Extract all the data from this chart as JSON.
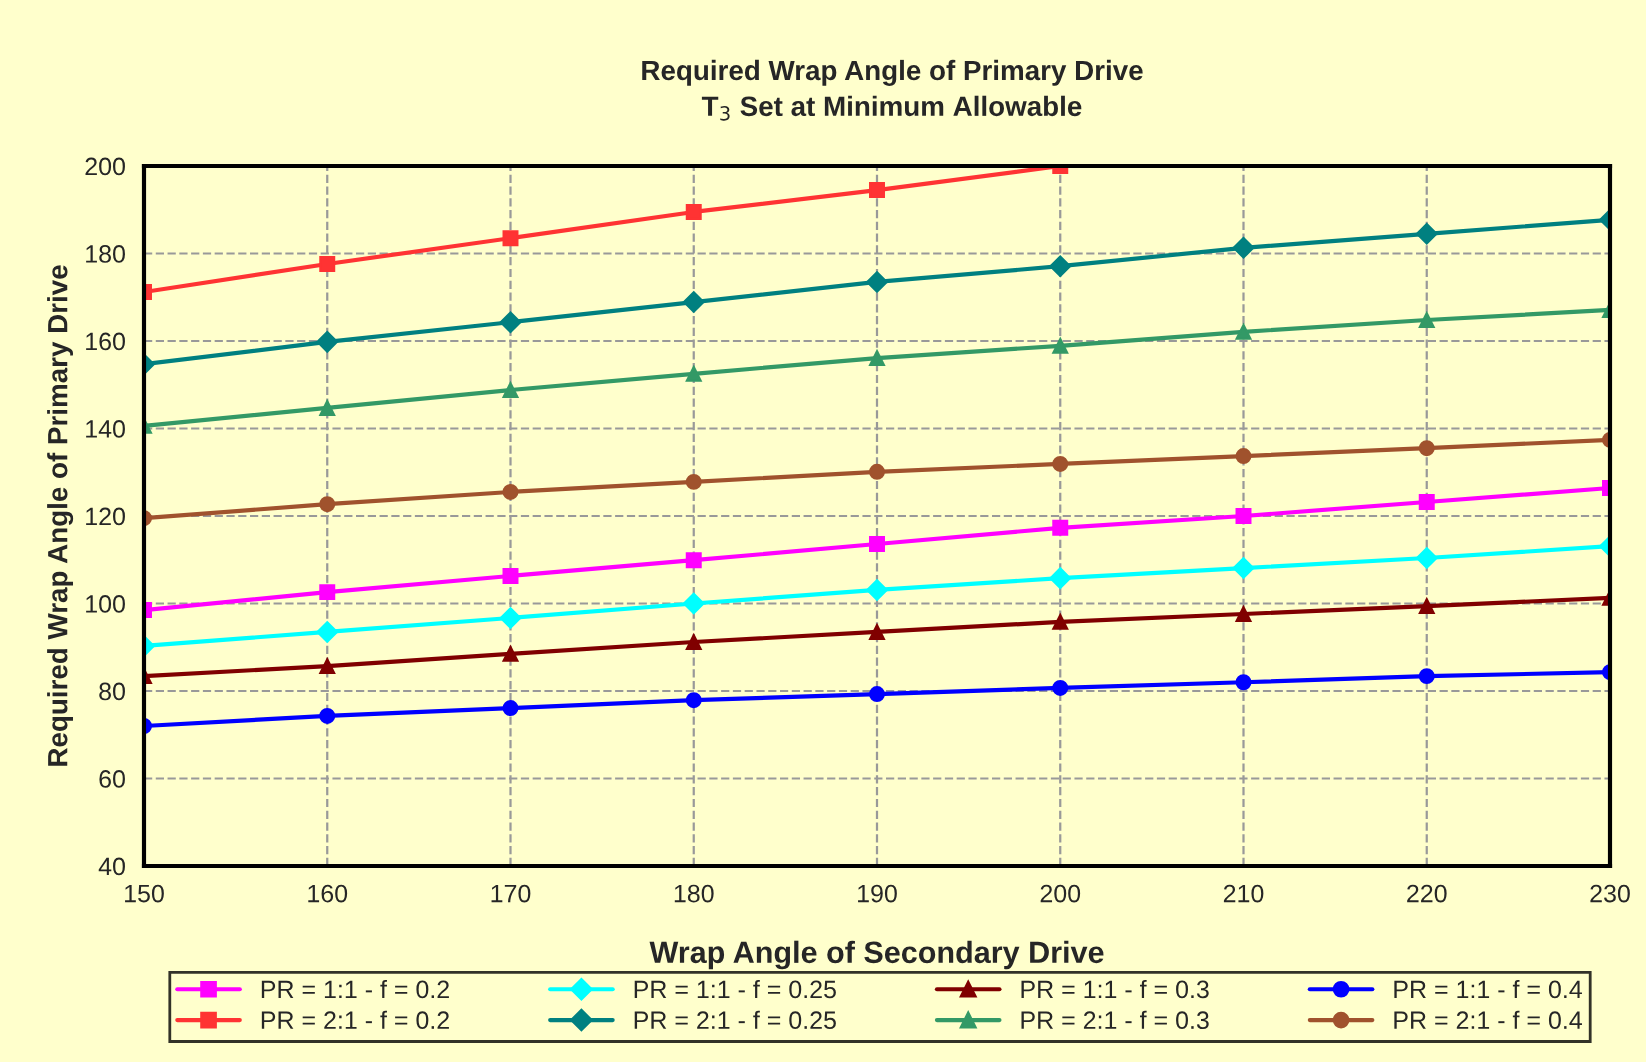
{
  "chart_data": {
    "type": "line",
    "title": "Required Wrap Angle of Primary Drive",
    "subtitle": "T$_{3}$ Set at Minimum Allowable",
    "xlabel": "Wrap Angle of Secondary Drive",
    "ylabel": "Required Wrap Angle of Primary Drive",
    "x": [
      150,
      160,
      170,
      180,
      190,
      200,
      210,
      220,
      230
    ],
    "xlim": [
      150,
      230
    ],
    "xticks": [
      150,
      160,
      170,
      180,
      190,
      200,
      210,
      220,
      230
    ],
    "ylim": [
      40,
      200
    ],
    "yticks": [
      40,
      60,
      80,
      100,
      120,
      140,
      160,
      180,
      200
    ],
    "grid": true,
    "legend": "bottom",
    "line_style": "solid",
    "series": [
      {
        "name": "PR = 1:1 - f = 0.2",
        "color": "#ff00ff",
        "marker": "square",
        "values": [
          98.5,
          102.6,
          106.3,
          109.9,
          113.6,
          117.3,
          120.0,
          123.2,
          126.4
        ]
      },
      {
        "name": "PR = 1:1 - f = 0.25",
        "color": "#00ffff",
        "marker": "diamond",
        "values": [
          90.3,
          93.5,
          96.7,
          100.0,
          103.1,
          105.8,
          108.1,
          110.4,
          113.1
        ]
      },
      {
        "name": "PR = 1:1 - f = 0.3",
        "color": "#800000",
        "marker": "triangle",
        "values": [
          83.4,
          85.7,
          88.5,
          91.2,
          93.5,
          95.8,
          97.6,
          99.4,
          101.3
        ]
      },
      {
        "name": "PR = 1:1 - f = 0.4",
        "color": "#0000ff",
        "marker": "circle",
        "values": [
          72.0,
          74.3,
          76.1,
          77.9,
          79.3,
          80.7,
          82.0,
          83.4,
          84.3
        ]
      },
      {
        "name": "PR = 2:1 - f = 0.2",
        "color": "#ff3333",
        "marker": "square",
        "values": [
          171.2,
          177.6,
          183.5,
          189.5,
          194.5,
          200.0,
          null,
          null,
          null
        ]
      },
      {
        "name": "PR = 2:1 - f = 0.25",
        "color": "#008080",
        "marker": "diamond",
        "values": [
          154.7,
          159.8,
          164.3,
          168.9,
          173.5,
          177.1,
          181.3,
          184.5,
          187.7
        ]
      },
      {
        "name": "PR = 2:1 - f = 0.3",
        "color": "#339966",
        "marker": "triangle",
        "values": [
          140.6,
          144.7,
          148.8,
          152.5,
          156.1,
          158.9,
          162.1,
          164.8,
          167.1
        ]
      },
      {
        "name": "PR = 2:1 - f = 0.4",
        "color": "#a0522d",
        "marker": "circle",
        "values": [
          119.5,
          122.7,
          125.5,
          127.8,
          130.1,
          131.9,
          133.7,
          135.5,
          137.4
        ]
      }
    ]
  }
}
